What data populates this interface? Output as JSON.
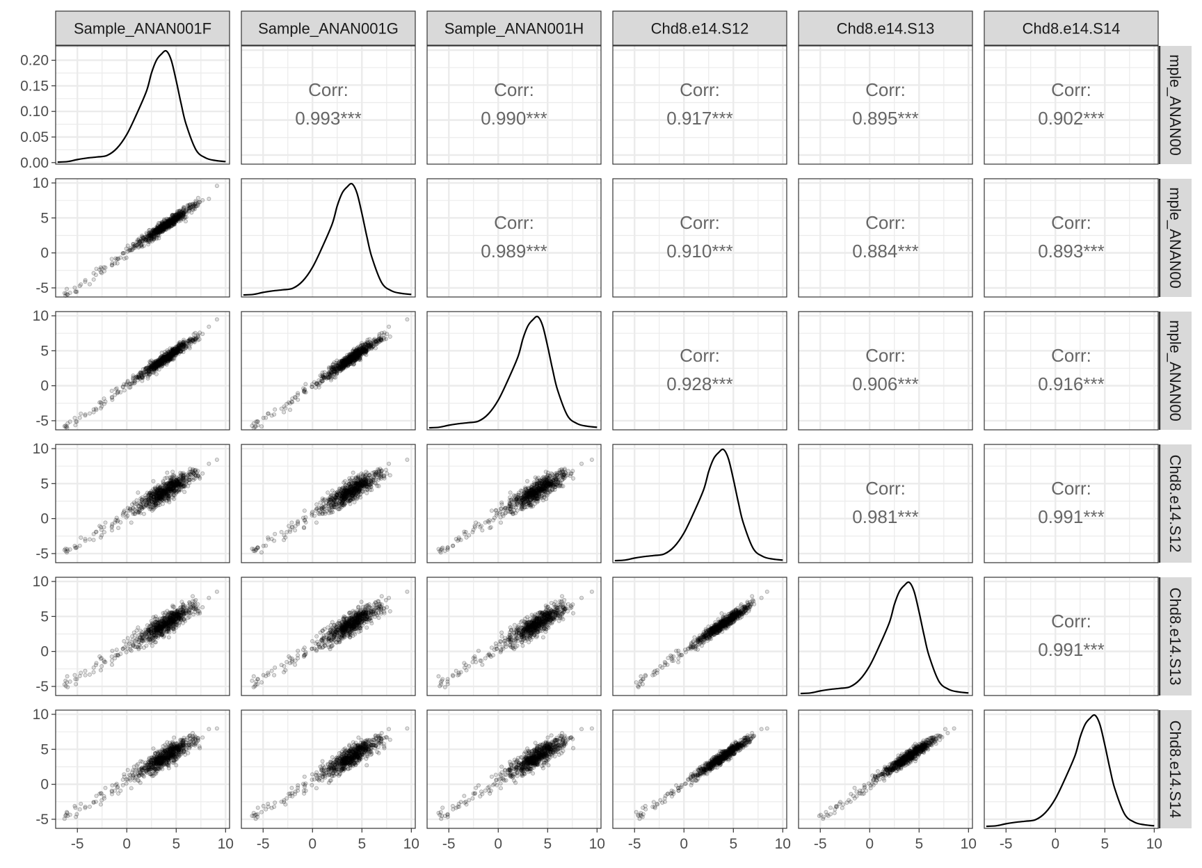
{
  "chart_data": {
    "type": "scatter",
    "variables": [
      "Sample_ANAN001F",
      "Sample_ANAN001G",
      "Sample_ANAN001H",
      "Chd8.e14.S12",
      "Chd8.e14.S13",
      "Chd8.e14.S14"
    ],
    "row_strip_labels": [
      "mple_ANAN00",
      "mple_ANAN00",
      "mple_ANAN00",
      "Chd8.e14.S12",
      "Chd8.e14.S13",
      "Chd8.e14.S14"
    ],
    "corr_label": "Corr:",
    "correlations": [
      {
        "row": 0,
        "col": 1,
        "value": "0.993***"
      },
      {
        "row": 0,
        "col": 2,
        "value": "0.990***"
      },
      {
        "row": 0,
        "col": 3,
        "value": "0.917***"
      },
      {
        "row": 0,
        "col": 4,
        "value": "0.895***"
      },
      {
        "row": 0,
        "col": 5,
        "value": "0.902***"
      },
      {
        "row": 1,
        "col": 2,
        "value": "0.989***"
      },
      {
        "row": 1,
        "col": 3,
        "value": "0.910***"
      },
      {
        "row": 1,
        "col": 4,
        "value": "0.884***"
      },
      {
        "row": 1,
        "col": 5,
        "value": "0.893***"
      },
      {
        "row": 2,
        "col": 3,
        "value": "0.928***"
      },
      {
        "row": 2,
        "col": 4,
        "value": "0.906***"
      },
      {
        "row": 2,
        "col": 5,
        "value": "0.916***"
      },
      {
        "row": 3,
        "col": 4,
        "value": "0.981***"
      },
      {
        "row": 3,
        "col": 5,
        "value": "0.991***"
      },
      {
        "row": 4,
        "col": 5,
        "value": "0.991***"
      }
    ],
    "x_ticks": [
      "-5",
      "0",
      "5",
      "10"
    ],
    "x_tick_values": [
      -5,
      0,
      5,
      10
    ],
    "xlim": [
      -7.2,
      10.4
    ],
    "y_ticks": [
      "-5",
      "0",
      "5",
      "10"
    ],
    "y_tick_values": [
      -5,
      0,
      5,
      10
    ],
    "ylim": [
      -6.3,
      10.6
    ],
    "density_y_ticks": [
      "0.00",
      "0.05",
      "0.10",
      "0.15",
      "0.20"
    ],
    "density_y_tick_values": [
      0.0,
      0.05,
      0.1,
      0.15,
      0.2
    ],
    "density_ylim": [
      -0.003,
      0.228
    ],
    "density_curve": {
      "x": [
        -7,
        -6,
        -5,
        -4,
        -3,
        -2,
        -1,
        0,
        1,
        2,
        2.5,
        3,
        3.5,
        4,
        4.5,
        5,
        5.5,
        6,
        7,
        8,
        9,
        10
      ],
      "y": [
        0.001,
        0.002,
        0.006,
        0.009,
        0.011,
        0.014,
        0.028,
        0.055,
        0.095,
        0.14,
        0.175,
        0.2,
        0.212,
        0.218,
        0.2,
        0.16,
        0.115,
        0.075,
        0.025,
        0.009,
        0.004,
        0.002
      ]
    },
    "scatter_points_per_panel": 700,
    "grid": true,
    "colors": {
      "strip_fill": "#d9d9d9",
      "panel_border": "#333333",
      "grid": "#ebebeb",
      "points": "#000000",
      "density_line": "#000000",
      "corr_text": "#666666"
    }
  }
}
